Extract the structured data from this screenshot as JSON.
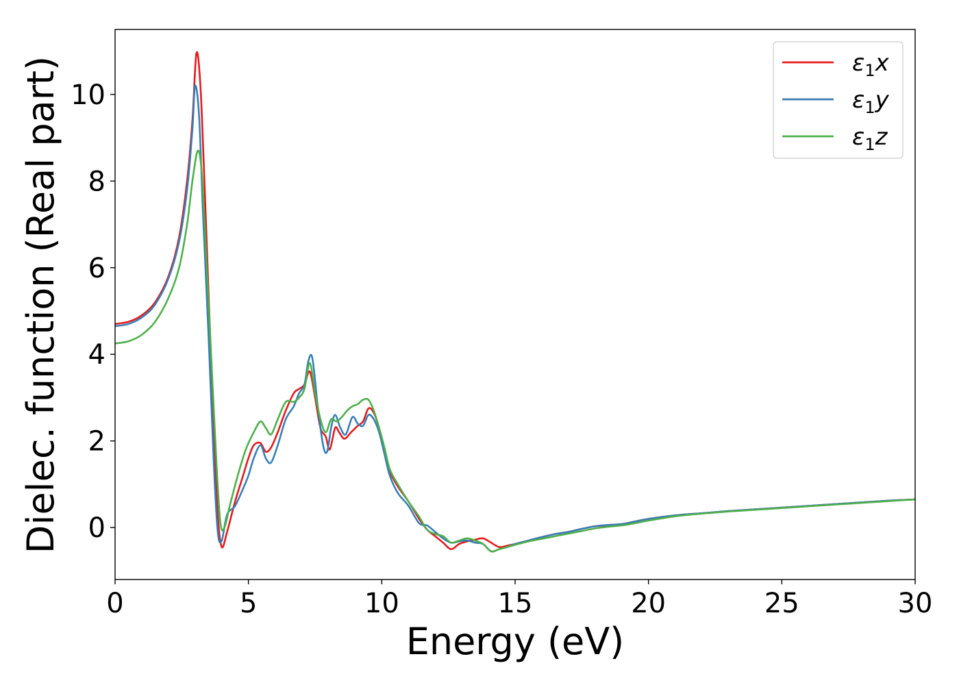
{
  "chart_data": {
    "type": "line",
    "title": "",
    "xlabel": "Energy (eV)",
    "ylabel": "Dielec. function (Real part)",
    "xlim": [
      0,
      30
    ],
    "ylim": [
      -1.2,
      11.5
    ],
    "xticks": [
      0,
      5,
      10,
      15,
      20,
      25,
      30
    ],
    "xtick_labels": [
      "0",
      "5",
      "10",
      "15",
      "20",
      "25",
      "30"
    ],
    "yticks": [
      0,
      2,
      4,
      6,
      8,
      10
    ],
    "ytick_labels": [
      "0",
      "2",
      "4",
      "6",
      "8",
      "10"
    ],
    "grid": false,
    "legend_position": "top-right",
    "series": [
      {
        "name": "ε1x",
        "legend_base": "ε",
        "legend_sub": "1",
        "legend_tail": "x",
        "color": "#e41a1c",
        "x": [
          0,
          0.5,
          1.0,
          1.5,
          2.0,
          2.4,
          2.7,
          2.9,
          3.05,
          3.2,
          3.35,
          3.5,
          3.7,
          3.85,
          4.0,
          4.2,
          4.5,
          4.8,
          5.0,
          5.2,
          5.45,
          5.65,
          5.85,
          6.1,
          6.4,
          6.7,
          6.9,
          7.1,
          7.3,
          7.5,
          7.7,
          7.9,
          8.05,
          8.25,
          8.4,
          8.6,
          8.85,
          9.1,
          9.3,
          9.5,
          9.7,
          9.9,
          10.1,
          10.3,
          10.6,
          11.0,
          11.4,
          11.7,
          12.0,
          12.3,
          12.6,
          12.9,
          13.2,
          13.5,
          13.8,
          14.1,
          14.4,
          14.7,
          15.0,
          15.5,
          16.0,
          16.5,
          17.0,
          17.5,
          18.0,
          18.5,
          19.0,
          19.5,
          20.0,
          21.0,
          22.0,
          23.0,
          24.0,
          25.0,
          26.0,
          27.0,
          28.0,
          29.0,
          30.0
        ],
        "y": [
          4.7,
          4.75,
          4.9,
          5.2,
          5.8,
          6.7,
          8.0,
          9.4,
          10.95,
          10.2,
          8.0,
          5.5,
          2.3,
          0.3,
          -0.45,
          -0.1,
          0.6,
          1.2,
          1.6,
          1.9,
          1.95,
          1.75,
          1.85,
          2.2,
          2.7,
          3.1,
          3.2,
          3.3,
          3.6,
          3.0,
          2.3,
          2.1,
          1.8,
          2.3,
          2.2,
          2.05,
          2.2,
          2.35,
          2.45,
          2.75,
          2.65,
          2.3,
          1.8,
          1.3,
          0.95,
          0.6,
          0.2,
          -0.05,
          -0.2,
          -0.35,
          -0.5,
          -0.38,
          -0.32,
          -0.28,
          -0.25,
          -0.35,
          -0.45,
          -0.42,
          -0.38,
          -0.3,
          -0.22,
          -0.15,
          -0.1,
          -0.03,
          0.03,
          0.05,
          0.08,
          0.14,
          0.2,
          0.28,
          0.33,
          0.38,
          0.42,
          0.46,
          0.5,
          0.54,
          0.58,
          0.62,
          0.65
        ]
      },
      {
        "name": "ε1y",
        "legend_base": "ε",
        "legend_sub": "1",
        "legend_tail": "y",
        "color": "#377eb8",
        "x": [
          0,
          0.5,
          1.0,
          1.5,
          2.0,
          2.4,
          2.7,
          2.9,
          3.0,
          3.15,
          3.3,
          3.5,
          3.7,
          3.85,
          4.0,
          4.2,
          4.5,
          4.8,
          5.0,
          5.2,
          5.45,
          5.65,
          5.85,
          6.1,
          6.4,
          6.7,
          6.9,
          7.1,
          7.25,
          7.4,
          7.6,
          7.8,
          7.95,
          8.1,
          8.25,
          8.45,
          8.65,
          8.9,
          9.1,
          9.3,
          9.5,
          9.7,
          9.9,
          10.1,
          10.3,
          10.6,
          11.0,
          11.4,
          11.7,
          12.0,
          12.3,
          12.6,
          12.9,
          13.2,
          13.5,
          13.8,
          14.1,
          14.4,
          14.7,
          15.0,
          15.5,
          16.0,
          16.5,
          17.0,
          17.5,
          18.0,
          18.5,
          19.0,
          19.5,
          20.0,
          21.0,
          22.0,
          23.0,
          24.0,
          25.0,
          26.0,
          27.0,
          28.0,
          29.0,
          30.0
        ],
        "y": [
          4.65,
          4.7,
          4.85,
          5.15,
          5.75,
          6.6,
          7.8,
          9.2,
          10.2,
          9.5,
          7.2,
          4.5,
          1.5,
          -0.1,
          -0.3,
          0.3,
          0.5,
          0.9,
          1.2,
          1.6,
          1.9,
          1.6,
          1.5,
          1.9,
          2.5,
          2.8,
          3.1,
          3.3,
          3.85,
          3.9,
          2.8,
          1.9,
          1.75,
          2.3,
          2.6,
          2.3,
          2.15,
          2.55,
          2.4,
          2.35,
          2.6,
          2.5,
          2.2,
          1.7,
          1.2,
          0.8,
          0.5,
          0.1,
          0.05,
          -0.1,
          -0.25,
          -0.35,
          -0.32,
          -0.3,
          -0.35,
          -0.38,
          -0.55,
          -0.5,
          -0.45,
          -0.38,
          -0.3,
          -0.22,
          -0.15,
          -0.1,
          -0.03,
          0.03,
          0.06,
          0.08,
          0.14,
          0.2,
          0.28,
          0.33,
          0.38,
          0.42,
          0.46,
          0.5,
          0.54,
          0.58,
          0.62,
          0.65
        ]
      },
      {
        "name": "ε1z",
        "legend_base": "ε",
        "legend_sub": "1",
        "legend_tail": "z",
        "color": "#4daf4a",
        "x": [
          0,
          0.5,
          1.0,
          1.5,
          2.0,
          2.4,
          2.7,
          2.9,
          3.1,
          3.25,
          3.4,
          3.6,
          3.8,
          3.95,
          4.1,
          4.3,
          4.6,
          4.9,
          5.2,
          5.45,
          5.65,
          5.85,
          6.1,
          6.4,
          6.7,
          6.9,
          7.1,
          7.3,
          7.5,
          7.7,
          7.9,
          8.1,
          8.3,
          8.5,
          8.7,
          8.9,
          9.1,
          9.3,
          9.5,
          9.7,
          9.9,
          10.1,
          10.3,
          10.6,
          11.0,
          11.4,
          11.7,
          12.0,
          12.3,
          12.6,
          12.9,
          13.2,
          13.5,
          13.8,
          14.1,
          14.4,
          14.7,
          15.0,
          15.5,
          16.0,
          16.5,
          17.0,
          17.5,
          18.0,
          18.5,
          19.0,
          19.5,
          20.0,
          21.0,
          22.0,
          23.0,
          24.0,
          25.0,
          26.0,
          27.0,
          28.0,
          29.0,
          30.0
        ],
        "y": [
          4.25,
          4.3,
          4.45,
          4.75,
          5.3,
          6.0,
          7.0,
          8.0,
          8.7,
          8.2,
          6.5,
          4.0,
          1.5,
          0.1,
          0.0,
          0.5,
          1.2,
          1.8,
          2.2,
          2.45,
          2.3,
          2.15,
          2.5,
          2.9,
          2.9,
          3.0,
          3.2,
          3.8,
          3.1,
          2.5,
          2.2,
          2.5,
          2.45,
          2.55,
          2.7,
          2.8,
          2.85,
          2.95,
          2.95,
          2.7,
          2.3,
          1.85,
          1.35,
          1.0,
          0.6,
          0.25,
          -0.05,
          -0.15,
          -0.2,
          -0.35,
          -0.3,
          -0.25,
          -0.3,
          -0.38,
          -0.55,
          -0.5,
          -0.45,
          -0.4,
          -0.32,
          -0.26,
          -0.2,
          -0.14,
          -0.08,
          -0.02,
          0.02,
          0.05,
          0.1,
          0.16,
          0.26,
          0.32,
          0.37,
          0.41,
          0.45,
          0.49,
          0.53,
          0.57,
          0.61,
          0.65
        ]
      }
    ]
  }
}
